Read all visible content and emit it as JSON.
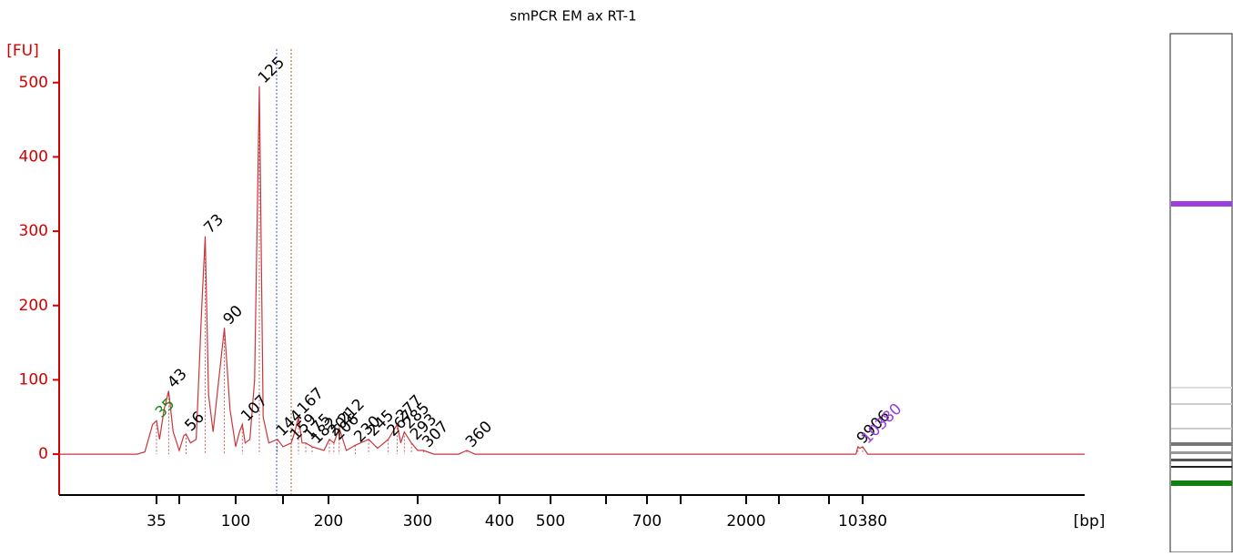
{
  "chart_data": {
    "type": "line",
    "title": "smPCR EM ax RT-1",
    "ylabel": "[FU]",
    "xlabel": "[bp]",
    "color": "#c8373c",
    "axis_color": "#d40000",
    "ylim": [
      -55,
      545
    ],
    "yticks": [
      0,
      100,
      200,
      300,
      400,
      500
    ],
    "xlim": [
      10,
      20000
    ],
    "xticks": [
      35,
      {
        "value": 50,
        "label": null
      },
      100,
      {
        "value": 150,
        "label": null
      },
      200,
      300,
      400,
      500,
      {
        "value": 600,
        "label": null
      },
      700,
      {
        "value": 1000,
        "label": null
      },
      2000,
      {
        "value": 3000,
        "label": null
      },
      {
        "value": 7000,
        "label": null
      },
      10380
    ],
    "x": [
      10,
      30,
      32,
      34,
      35,
      37,
      40,
      43,
      46,
      50,
      54,
      56,
      60,
      65,
      70,
      73,
      76,
      80,
      85,
      90,
      95,
      100,
      104,
      107,
      110,
      115,
      120,
      125,
      129,
      135,
      144,
      150,
      159,
      163,
      167,
      171,
      175,
      182,
      195,
      201,
      206,
      212,
      220,
      230,
      245,
      255,
      267,
      277,
      281,
      285,
      293,
      300,
      307,
      320,
      350,
      360,
      370,
      9700,
      9906,
      10100,
      10380,
      10600,
      20000
    ],
    "values": [
      0,
      0,
      3,
      40,
      45,
      20,
      60,
      85,
      30,
      5,
      25,
      27,
      15,
      20,
      200,
      293,
      80,
      30,
      100,
      170,
      60,
      10,
      30,
      40,
      15,
      20,
      100,
      495,
      50,
      15,
      20,
      10,
      15,
      30,
      50,
      15,
      15,
      10,
      5,
      20,
      15,
      35,
      5,
      12,
      20,
      8,
      20,
      40,
      15,
      30,
      15,
      5,
      5,
      0,
      0,
      5,
      0,
      0,
      10,
      8,
      10,
      0,
      0
    ],
    "peaks": {
      "x": [
        35,
        43,
        56,
        73,
        90,
        107,
        125,
        144,
        159,
        167,
        175,
        182,
        201,
        206,
        212,
        230,
        245,
        267,
        277,
        285,
        293,
        307,
        360,
        9906,
        10380
      ],
      "y": [
        45,
        85,
        27,
        293,
        170,
        40,
        495,
        20,
        15,
        50,
        15,
        10,
        20,
        15,
        35,
        12,
        20,
        20,
        40,
        30,
        15,
        5,
        5,
        10,
        10
      ],
      "colors": [
        "#1a8a1a",
        "#000",
        "#000",
        "#000",
        "#000",
        "#000",
        "#000",
        "#000",
        "#000",
        "#000",
        "#000",
        "#000",
        "#000",
        "#000",
        "#000",
        "#000",
        "#000",
        "#000",
        "#000",
        "#000",
        "#000",
        "#000",
        "#000",
        "#000",
        "#9b3fe0"
      ]
    }
  }
}
